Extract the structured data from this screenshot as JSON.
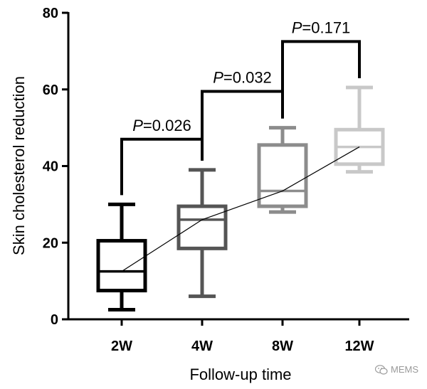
{
  "chart_data": {
    "type": "box",
    "xlabel": "Follow-up time",
    "ylabel": "Skin cholesterol reduction",
    "ylim": [
      0,
      80
    ],
    "yticks": [
      0,
      20,
      40,
      60,
      80
    ],
    "categories": [
      "2W",
      "4W",
      "8W",
      "12W"
    ],
    "colors": [
      "#000000",
      "#555555",
      "#8c8c8c",
      "#c8c8c8"
    ],
    "boxes": [
      {
        "category": "2W",
        "min": 2.5,
        "q1": 7.5,
        "median": 12.5,
        "q3": 20.5,
        "max": 30.0
      },
      {
        "category": "4W",
        "min": 6.0,
        "q1": 18.5,
        "median": 26.0,
        "q3": 29.5,
        "max": 39.0
      },
      {
        "category": "8W",
        "min": 28.0,
        "q1": 29.5,
        "median": 33.5,
        "q3": 45.5,
        "max": 50.0
      },
      {
        "category": "12W",
        "min": 38.5,
        "q1": 40.5,
        "median": 45.0,
        "q3": 49.5,
        "max": 60.5
      }
    ],
    "trend_line": [
      12.5,
      26.0,
      33.5,
      45.0
    ],
    "comparisons": [
      {
        "from": "2W",
        "to": "4W",
        "p_label": "P",
        "p_value": "=0.026",
        "y": 47
      },
      {
        "from": "4W",
        "to": "8W",
        "p_label": "P",
        "p_value": "=0.032",
        "y": 59.5
      },
      {
        "from": "8W",
        "to": "12W",
        "p_label": "P",
        "p_value": "=0.171",
        "y": 72.5
      }
    ],
    "grid": false,
    "legend": "none"
  },
  "watermark": {
    "text": "MEMS",
    "icon": "wechat-icon"
  }
}
